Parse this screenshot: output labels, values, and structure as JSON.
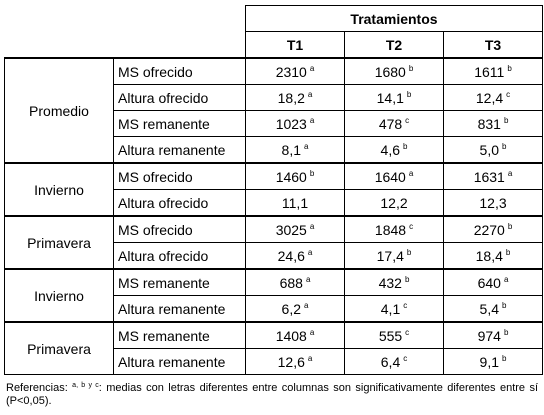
{
  "header": {
    "title": "Tratamientos",
    "columns": [
      "T1",
      "T2",
      "T3"
    ]
  },
  "groups": [
    {
      "name": "Promedio",
      "rows": [
        {
          "variable": "MS ofrecido",
          "cells": [
            {
              "v": "2310",
              "s": "a"
            },
            {
              "v": "1680",
              "s": "b"
            },
            {
              "v": "1611",
              "s": "b"
            }
          ]
        },
        {
          "variable": "Altura ofrecido",
          "cells": [
            {
              "v": "18,2",
              "s": "a"
            },
            {
              "v": "14,1",
              "s": "b"
            },
            {
              "v": "12,4",
              "s": "c"
            }
          ]
        },
        {
          "variable": "MS remanente",
          "cells": [
            {
              "v": "1023",
              "s": "a"
            },
            {
              "v": "478",
              "s": "c"
            },
            {
              "v": "831",
              "s": "b"
            }
          ]
        },
        {
          "variable": "Altura remanente",
          "cells": [
            {
              "v": "8,1",
              "s": "a"
            },
            {
              "v": "4,6",
              "s": "b"
            },
            {
              "v": "5,0",
              "s": "b"
            }
          ]
        }
      ]
    },
    {
      "name": "Invierno",
      "rows": [
        {
          "variable": "MS ofrecido",
          "cells": [
            {
              "v": "1460",
              "s": "b"
            },
            {
              "v": "1640",
              "s": "a"
            },
            {
              "v": "1631",
              "s": "a"
            }
          ]
        },
        {
          "variable": "Altura ofrecido",
          "cells": [
            {
              "v": "11,1",
              "s": ""
            },
            {
              "v": "12,2",
              "s": ""
            },
            {
              "v": "12,3",
              "s": ""
            }
          ]
        }
      ]
    },
    {
      "name": "Primavera",
      "rows": [
        {
          "variable": "MS ofrecido",
          "cells": [
            {
              "v": "3025",
              "s": "a"
            },
            {
              "v": "1848",
              "s": "c"
            },
            {
              "v": "2270",
              "s": "b"
            }
          ]
        },
        {
          "variable": "Altura ofrecido",
          "cells": [
            {
              "v": "24,6",
              "s": "a"
            },
            {
              "v": "17,4",
              "s": "b"
            },
            {
              "v": "18,4",
              "s": "b"
            }
          ]
        }
      ]
    },
    {
      "name": "Invierno",
      "rows": [
        {
          "variable": "MS remanente",
          "cells": [
            {
              "v": "688",
              "s": "a"
            },
            {
              "v": "432",
              "s": "b"
            },
            {
              "v": "640",
              "s": "a"
            }
          ]
        },
        {
          "variable": "Altura remanente",
          "cells": [
            {
              "v": "6,2",
              "s": "a"
            },
            {
              "v": "4,1",
              "s": "c"
            },
            {
              "v": "5,4",
              "s": "b"
            }
          ]
        }
      ]
    },
    {
      "name": "Primavera",
      "rows": [
        {
          "variable": "MS remanente",
          "cells": [
            {
              "v": "1408",
              "s": "a"
            },
            {
              "v": "555",
              "s": "c"
            },
            {
              "v": "974",
              "s": "b"
            }
          ]
        },
        {
          "variable": "Altura remanente",
          "cells": [
            {
              "v": "12,6",
              "s": "a"
            },
            {
              "v": "6,4",
              "s": "c"
            },
            {
              "v": "9,1",
              "s": "b"
            }
          ]
        }
      ]
    }
  ],
  "footnote": {
    "prefix": "Referencias: ",
    "superscript": "a, b y c",
    "text": ": medias con letras diferentes entre columnas son significativamente diferentes entre sí (P<0,05)."
  }
}
